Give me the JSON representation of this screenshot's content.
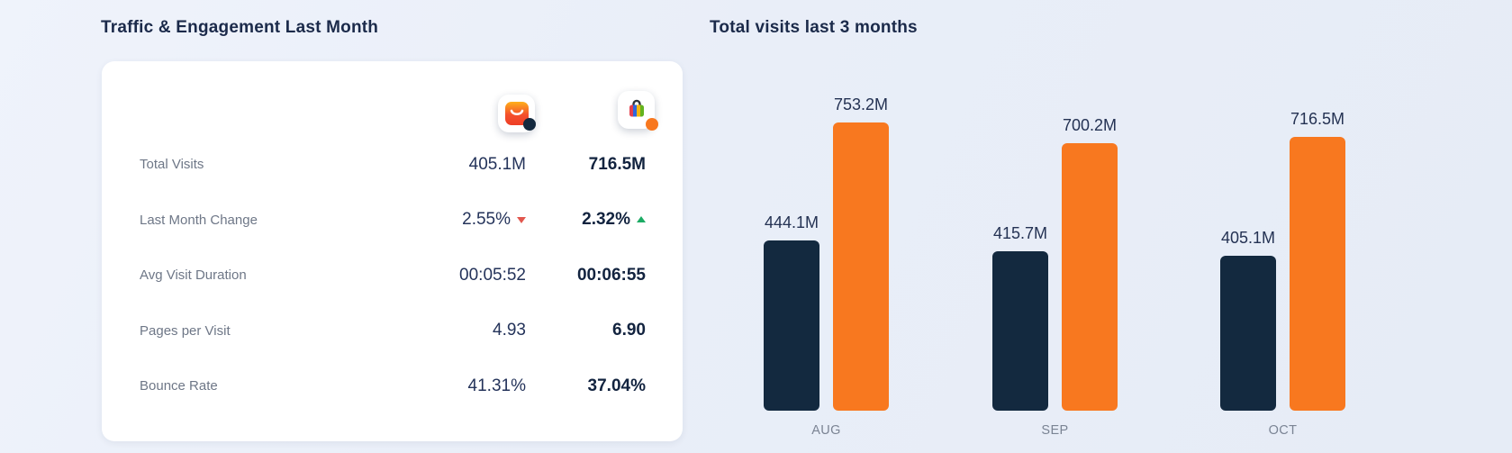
{
  "titles": {
    "left": "Traffic & Engagement Last Month",
    "right": "Total visits last 3 months"
  },
  "comparison_card": {
    "columns": [
      {
        "icon": "aliexpress-app-icon",
        "marker_color": "#13293F"
      },
      {
        "icon": "shopping-bag-app-icon",
        "marker_color": "#F8781F"
      }
    ],
    "rows": [
      {
        "label": "Total Visits",
        "value1": "405.1M",
        "value2": "716.5M"
      },
      {
        "label": "Last Month Change",
        "value1": "2.55%",
        "trend1": "down",
        "value2": "2.32%",
        "trend2": "up"
      },
      {
        "label": "Avg Visit Duration",
        "value1": "00:05:52",
        "value2": "00:06:55"
      },
      {
        "label": "Pages per Visit",
        "value1": "4.93",
        "value2": "6.90"
      },
      {
        "label": "Bounce Rate",
        "value1": "41.31%",
        "value2": "37.04%"
      }
    ]
  },
  "chart_data": {
    "type": "bar",
    "title": "Total visits last 3 months",
    "categories": [
      "AUG",
      "SEP",
      "OCT"
    ],
    "series": [
      {
        "name": "site-a",
        "color": "#13293F",
        "values": [
          444.1,
          415.7,
          405.1
        ],
        "value_labels": [
          "444.1M",
          "415.7M",
          "405.1M"
        ]
      },
      {
        "name": "site-b",
        "color": "#F8781F",
        "values": [
          753.2,
          700.2,
          716.5
        ],
        "value_labels": [
          "753.2M",
          "700.2M",
          "716.5M"
        ]
      }
    ],
    "unit": "M",
    "ylim": [
      0,
      753.2
    ],
    "grid": false,
    "legend_position": "none",
    "value_labels_position": "above-bars"
  },
  "theme": {
    "background": "#e9eef8",
    "card": "#ffffff",
    "navy": "#13293F",
    "orange": "#F8781F",
    "label_gray": "#6e7787",
    "value_dark": "#1d2c4e",
    "trend_up_green": "#1cab64",
    "trend_down_red": "#e2574e"
  }
}
